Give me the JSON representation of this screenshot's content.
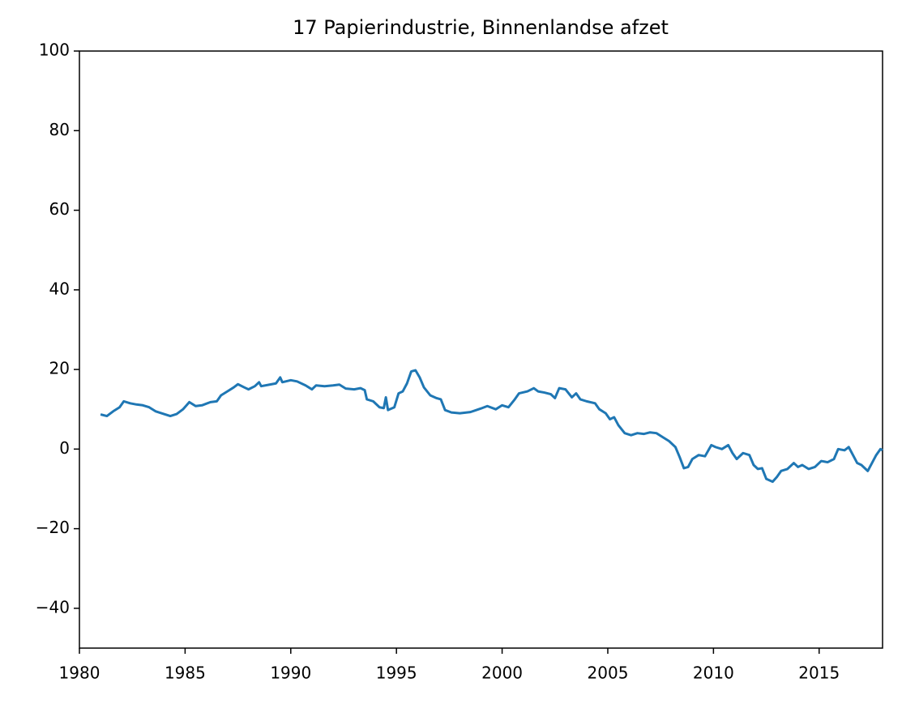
{
  "chart_data": {
    "type": "line",
    "title": "17 Papierindustrie, Binnenlandse afzet",
    "color": "#1f77b4",
    "x": [
      1981.0,
      1981.3,
      1981.6,
      1981.9,
      1982.1,
      1982.4,
      1982.7,
      1983.0,
      1983.3,
      1983.6,
      1984.0,
      1984.3,
      1984.6,
      1984.9,
      1985.2,
      1985.5,
      1985.8,
      1986.2,
      1986.5,
      1986.7,
      1987.0,
      1987.3,
      1987.5,
      1987.8,
      1988.0,
      1988.3,
      1988.5,
      1988.6,
      1989.0,
      1989.3,
      1989.5,
      1989.6,
      1990.0,
      1990.3,
      1990.7,
      1991.0,
      1991.2,
      1991.6,
      1992.0,
      1992.3,
      1992.6,
      1993.0,
      1993.3,
      1993.5,
      1993.6,
      1993.9,
      1994.2,
      1994.4,
      1994.5,
      1994.6,
      1994.9,
      1995.1,
      1995.3,
      1995.5,
      1995.7,
      1995.9,
      1996.1,
      1996.3,
      1996.6,
      1996.9,
      1997.1,
      1997.3,
      1997.6,
      1998.0,
      1998.5,
      1999.0,
      1999.3,
      1999.7,
      2000.0,
      2000.3,
      2000.6,
      2000.8,
      2001.2,
      2001.5,
      2001.7,
      2002.0,
      2002.3,
      2002.5,
      2002.7,
      2003.0,
      2003.3,
      2003.5,
      2003.7,
      2004.0,
      2004.4,
      2004.6,
      2004.9,
      2005.1,
      2005.3,
      2005.5,
      2005.8,
      2006.1,
      2006.4,
      2006.7,
      2007.0,
      2007.3,
      2007.6,
      2007.9,
      2008.2,
      2008.4,
      2008.6,
      2008.8,
      2009.0,
      2009.3,
      2009.6,
      2009.9,
      2010.1,
      2010.4,
      2010.7,
      2010.9,
      2011.1,
      2011.4,
      2011.7,
      2011.9,
      2012.1,
      2012.3,
      2012.5,
      2012.8,
      2013.0,
      2013.2,
      2013.5,
      2013.8,
      2014.0,
      2014.2,
      2014.5,
      2014.8,
      2015.1,
      2015.4,
      2015.7,
      2015.9,
      2016.2,
      2016.4,
      2016.6,
      2016.8,
      2017.0,
      2017.3,
      2017.5,
      2017.7,
      2017.9,
      2018.0
    ],
    "values": [
      8.7,
      8.3,
      9.5,
      10.5,
      12,
      11.5,
      11.2,
      11,
      10.5,
      9.5,
      8.8,
      8.3,
      8.8,
      10,
      11.8,
      10.8,
      11,
      11.8,
      12,
      13.5,
      14.5,
      15.5,
      16.3,
      15.5,
      15,
      15.8,
      16.8,
      15.8,
      16.2,
      16.5,
      18,
      16.8,
      17.3,
      17,
      16,
      15,
      16,
      15.8,
      16,
      16.2,
      15.2,
      15,
      15.3,
      14.8,
      12.5,
      12,
      10.5,
      10.3,
      13,
      9.8,
      10.5,
      14,
      14.5,
      16.5,
      19.5,
      19.8,
      18,
      15.5,
      13.5,
      12.8,
      12.5,
      9.8,
      9.2,
      9,
      9.3,
      10.2,
      10.8,
      10,
      11,
      10.5,
      12.5,
      14,
      14.5,
      15.3,
      14.5,
      14.2,
      13.8,
      12.8,
      15.3,
      15,
      13,
      14,
      12.5,
      12,
      11.5,
      10,
      9,
      7.5,
      8,
      6,
      4,
      3.5,
      4,
      3.8,
      4.2,
      4,
      3,
      2,
      0.5,
      -2,
      -4.8,
      -4.5,
      -2.5,
      -1.5,
      -1.8,
      1,
      0.5,
      0,
      1,
      -1,
      -2.5,
      -1,
      -1.5,
      -4,
      -5,
      -4.8,
      -7.5,
      -8.2,
      -7,
      -5.5,
      -5,
      -3.5,
      -4.5,
      -4,
      -5,
      -4.5,
      -3,
      -3.3,
      -2.5,
      0,
      -0.3,
      0.5,
      -1.5,
      -3.5,
      -4,
      -5.5,
      -3.5,
      -1.5,
      0,
      -0.3
    ],
    "xlim": [
      1980,
      2018
    ],
    "xticks": [
      1980,
      1985,
      1990,
      1995,
      2000,
      2005,
      2010,
      2015
    ],
    "ylim": [
      -50,
      100
    ],
    "yticks": [
      {
        "value": -40,
        "label": "−40"
      },
      {
        "value": -20,
        "label": "−20"
      },
      0,
      20,
      40,
      60,
      80,
      100
    ]
  }
}
